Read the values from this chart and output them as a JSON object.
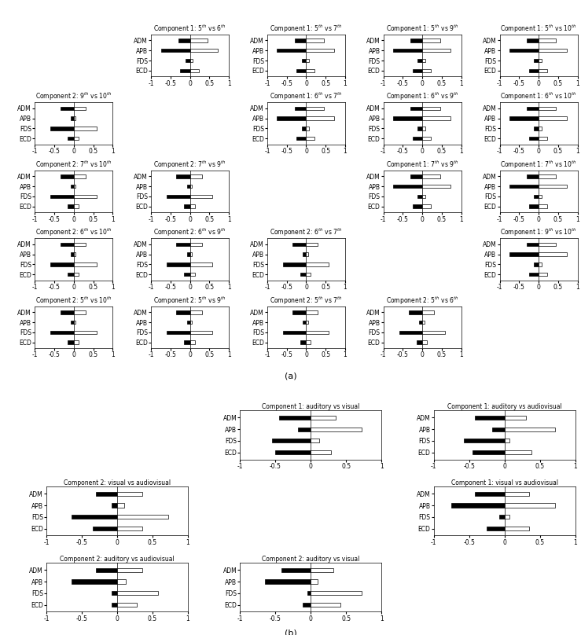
{
  "muscles": [
    "ADM",
    "APB",
    "FDS",
    "ECD"
  ],
  "panels_a": {
    "0_1": {
      "title": "Component 1: 5$^{th}$ vs 6$^{th}$",
      "black": [
        -0.3,
        -0.75,
        -0.12,
        -0.25
      ],
      "white": [
        0.45,
        0.72,
        0.07,
        0.22
      ]
    },
    "0_2": {
      "title": "Component 1: 5$^{th}$ vs 7$^{th}$",
      "black": [
        -0.3,
        -0.75,
        -0.12,
        -0.25
      ],
      "white": [
        0.45,
        0.72,
        0.07,
        0.22
      ]
    },
    "0_3": {
      "title": "Component 1: 5$^{th}$ vs 9$^{th}$",
      "black": [
        -0.3,
        -0.75,
        -0.12,
        -0.25
      ],
      "white": [
        0.45,
        0.72,
        0.07,
        0.22
      ]
    },
    "0_4": {
      "title": "Component 1: 5$^{th}$ vs 10$^{th}$",
      "black": [
        -0.3,
        -0.75,
        -0.12,
        -0.25
      ],
      "white": [
        0.45,
        0.72,
        0.07,
        0.22
      ]
    },
    "1_0": {
      "title": "Component 2: 9$^{th}$ vs 10$^{th}$",
      "black": [
        -0.35,
        -0.08,
        -0.6,
        -0.15
      ],
      "white": [
        0.3,
        0.05,
        0.58,
        0.12
      ]
    },
    "1_2": {
      "title": "Component 1: 6$^{th}$ vs 7$^{th}$",
      "black": [
        -0.3,
        -0.75,
        -0.12,
        -0.25
      ],
      "white": [
        0.45,
        0.72,
        0.07,
        0.22
      ]
    },
    "1_3": {
      "title": "Component 1: 6$^{th}$ vs 9$^{th}$",
      "black": [
        -0.3,
        -0.75,
        -0.12,
        -0.25
      ],
      "white": [
        0.45,
        0.72,
        0.07,
        0.22
      ]
    },
    "1_4": {
      "title": "Component 1: 6$^{th}$ vs 10$^{th}$",
      "black": [
        -0.3,
        -0.75,
        -0.12,
        -0.25
      ],
      "white": [
        0.45,
        0.72,
        0.07,
        0.22
      ]
    },
    "2_0": {
      "title": "Component 2: 7$^{th}$ vs 10$^{th}$",
      "black": [
        -0.35,
        -0.08,
        -0.6,
        -0.15
      ],
      "white": [
        0.3,
        0.05,
        0.58,
        0.12
      ]
    },
    "2_1": {
      "title": "Component 2: 7$^{th}$ vs 9$^{th}$",
      "black": [
        -0.35,
        -0.08,
        -0.6,
        -0.15
      ],
      "white": [
        0.3,
        0.05,
        0.58,
        0.12
      ]
    },
    "2_3": {
      "title": "Component 1: 7$^{th}$ vs 9$^{th}$",
      "black": [
        -0.3,
        -0.75,
        -0.12,
        -0.25
      ],
      "white": [
        0.45,
        0.72,
        0.07,
        0.22
      ]
    },
    "2_4": {
      "title": "Component 1: 7$^{th}$ vs 10$^{th}$",
      "black": [
        -0.3,
        -0.75,
        -0.12,
        -0.25
      ],
      "white": [
        0.45,
        0.72,
        0.07,
        0.22
      ]
    },
    "3_0": {
      "title": "Component 2: 6$^{th}$ vs 10$^{th}$",
      "black": [
        -0.35,
        -0.08,
        -0.6,
        -0.15
      ],
      "white": [
        0.3,
        0.05,
        0.58,
        0.12
      ]
    },
    "3_1": {
      "title": "Component 2: 6$^{th}$ vs 9$^{th}$",
      "black": [
        -0.35,
        -0.08,
        -0.6,
        -0.15
      ],
      "white": [
        0.3,
        0.05,
        0.58,
        0.12
      ]
    },
    "3_2": {
      "title": "Component 2: 6$^{th}$ vs 7$^{th}$",
      "black": [
        -0.35,
        -0.08,
        -0.6,
        -0.15
      ],
      "white": [
        0.3,
        0.05,
        0.58,
        0.12
      ]
    },
    "3_4": {
      "title": "Component 1: 9$^{th}$ vs 10$^{th}$",
      "black": [
        -0.3,
        -0.75,
        -0.12,
        -0.25
      ],
      "white": [
        0.45,
        0.72,
        0.07,
        0.22
      ]
    },
    "4_0": {
      "title": "Component 2: 5$^{th}$ vs 10$^{th}$",
      "black": [
        -0.35,
        -0.08,
        -0.6,
        -0.15
      ],
      "white": [
        0.3,
        0.05,
        0.58,
        0.12
      ]
    },
    "4_1": {
      "title": "Component 2: 5$^{th}$ vs 9$^{th}$",
      "black": [
        -0.35,
        -0.08,
        -0.6,
        -0.15
      ],
      "white": [
        0.3,
        0.05,
        0.58,
        0.12
      ]
    },
    "4_2": {
      "title": "Component 2: 5$^{th}$ vs 7$^{th}$",
      "black": [
        -0.35,
        -0.08,
        -0.6,
        -0.15
      ],
      "white": [
        0.3,
        0.05,
        0.58,
        0.12
      ]
    },
    "4_3": {
      "title": "Component 2: 5$^{th}$ vs 6$^{th}$",
      "black": [
        -0.35,
        -0.08,
        -0.6,
        -0.15
      ],
      "white": [
        0.3,
        0.05,
        0.58,
        0.12
      ]
    }
  },
  "panels_b": {
    "0_1": {
      "title": "Component 1: auditory vs visual",
      "black": [
        -0.45,
        -0.18,
        -0.55,
        -0.5
      ],
      "white": [
        0.35,
        0.72,
        0.12,
        0.28
      ]
    },
    "0_2": {
      "title": "Component 1: auditory vs audiovisual",
      "black": [
        -0.42,
        -0.18,
        -0.58,
        -0.45
      ],
      "white": [
        0.3,
        0.72,
        0.07,
        0.38
      ]
    },
    "1_0": {
      "title": "Component 2: visual vs audiovisual",
      "black": [
        -0.3,
        -0.08,
        -0.65,
        -0.35
      ],
      "white": [
        0.35,
        0.1,
        0.72,
        0.35
      ]
    },
    "1_2": {
      "title": "Component 1: visual vs audiovisual",
      "black": [
        -0.42,
        -0.75,
        -0.08,
        -0.25
      ],
      "white": [
        0.35,
        0.72,
        0.07,
        0.35
      ]
    },
    "2_0": {
      "title": "Component 2: auditory vs audiovisual",
      "black": [
        -0.3,
        -0.65,
        -0.08,
        -0.08
      ],
      "white": [
        0.35,
        0.12,
        0.58,
        0.28
      ]
    },
    "2_1": {
      "title": "Component 2: auditory vs visual",
      "black": [
        -0.42,
        -0.65,
        -0.05,
        -0.12
      ],
      "white": [
        0.32,
        0.1,
        0.72,
        0.42
      ]
    }
  }
}
